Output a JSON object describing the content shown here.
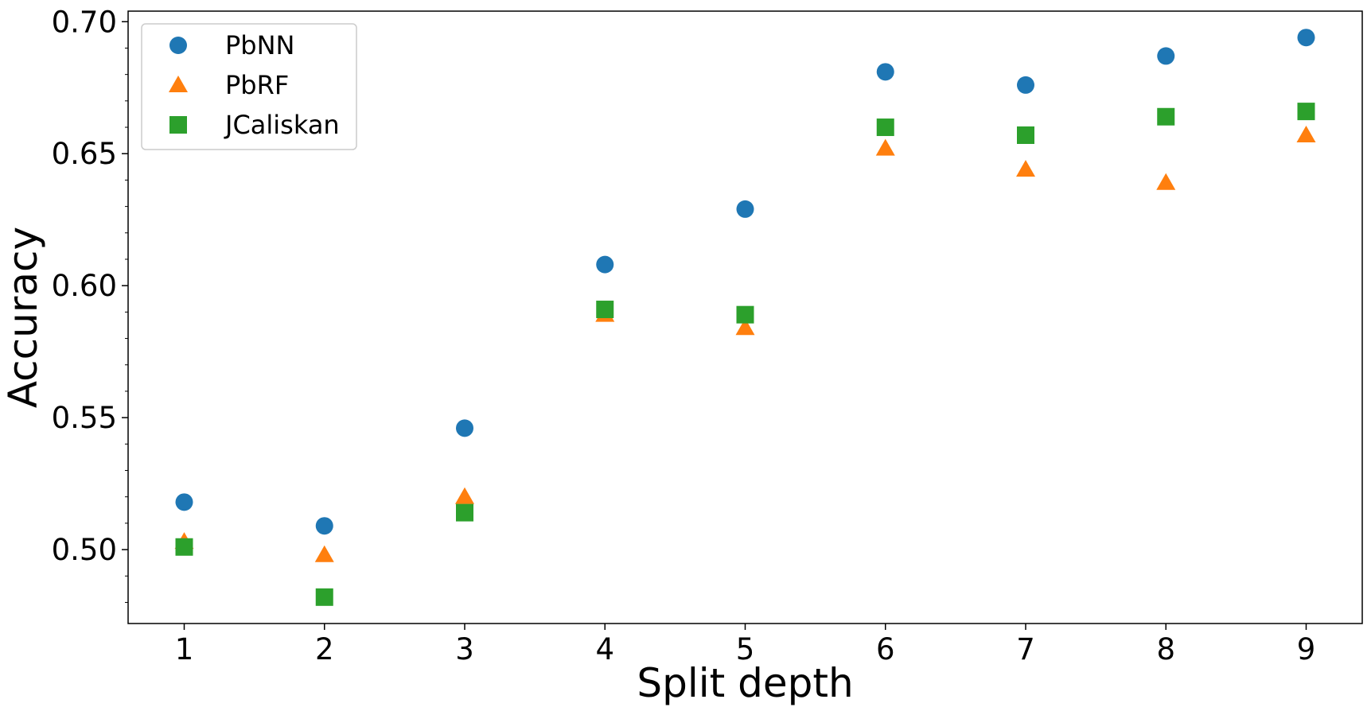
{
  "chart_data": {
    "type": "scatter",
    "title": "",
    "xlabel": "Split depth",
    "ylabel": "Accuracy",
    "x": [
      1,
      2,
      3,
      4,
      5,
      6,
      7,
      8,
      9
    ],
    "xlim": [
      0.6,
      9.4
    ],
    "ylim": [
      0.472,
      0.704
    ],
    "xticks": [
      1,
      2,
      3,
      4,
      5,
      6,
      7,
      8,
      9
    ],
    "yticks": [
      0.5,
      0.55,
      0.6,
      0.65,
      0.7
    ],
    "ytick_labels": [
      "0.50",
      "0.55",
      "0.60",
      "0.65",
      "0.70"
    ],
    "yminor_step": 0.01,
    "legend_position": "upper-left",
    "series": [
      {
        "name": "PbNN",
        "marker": "circle",
        "color": "#1f77b4",
        "values": [
          0.518,
          0.509,
          0.546,
          0.608,
          0.629,
          0.681,
          0.676,
          0.687,
          0.694
        ]
      },
      {
        "name": "PbRF",
        "marker": "triangle",
        "color": "#ff7f0e",
        "values": [
          0.503,
          0.498,
          0.52,
          0.589,
          0.584,
          0.652,
          0.644,
          0.639,
          0.657
        ]
      },
      {
        "name": "JCaliskan",
        "marker": "square",
        "color": "#2ca02c",
        "values": [
          0.501,
          0.482,
          0.514,
          0.591,
          0.589,
          0.66,
          0.657,
          0.664,
          0.666
        ]
      }
    ]
  }
}
